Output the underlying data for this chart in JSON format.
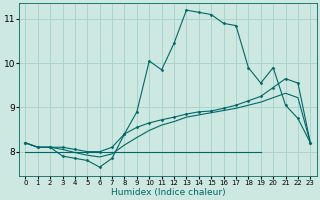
{
  "xlabel": "Humidex (Indice chaleur)",
  "bg_color": "#cce8e0",
  "grid_color": "#aad4cc",
  "line_color": "#006868",
  "xlim": [
    -0.5,
    23.5
  ],
  "ylim": [
    7.45,
    11.35
  ],
  "yticks": [
    8,
    9,
    10,
    11
  ],
  "xticks": [
    0,
    1,
    2,
    3,
    4,
    5,
    6,
    7,
    8,
    9,
    10,
    11,
    12,
    13,
    14,
    15,
    16,
    17,
    18,
    19,
    20,
    21,
    22,
    23
  ],
  "main_line_y": [
    8.2,
    8.1,
    8.1,
    7.9,
    7.85,
    7.8,
    7.65,
    7.85,
    8.4,
    8.9,
    10.05,
    9.85,
    10.45,
    11.2,
    11.15,
    11.1,
    10.9,
    10.85,
    9.9,
    9.55,
    9.9,
    9.05,
    8.75,
    8.2
  ],
  "line2_y": [
    8.2,
    8.1,
    8.1,
    8.1,
    8.05,
    8.0,
    8.0,
    8.1,
    8.4,
    8.55,
    8.65,
    8.72,
    8.78,
    8.85,
    8.9,
    8.92,
    8.98,
    9.05,
    9.15,
    9.25,
    9.45,
    9.65,
    9.55,
    8.2
  ],
  "line3_y": [
    8.2,
    8.1,
    8.1,
    8.05,
    7.98,
    7.92,
    7.88,
    7.95,
    8.15,
    8.32,
    8.48,
    8.6,
    8.68,
    8.78,
    8.83,
    8.88,
    8.93,
    8.98,
    9.05,
    9.12,
    9.22,
    9.32,
    9.22,
    8.2
  ],
  "flat_line_y": 8.0,
  "flat_line_x_start": 0,
  "flat_line_x_end": 19
}
